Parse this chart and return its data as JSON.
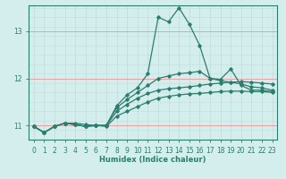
{
  "xlabel": "Humidex (Indice chaleur)",
  "ylabel": "",
  "bg_color": "#d4eeed",
  "grid_color_minor": "#c2dede",
  "grid_color_major": "#e8a0a0",
  "line_color": "#2d7d6e",
  "xlim": [
    -0.5,
    23.5
  ],
  "ylim": [
    10.7,
    13.55
  ],
  "yticks": [
    11,
    12,
    13
  ],
  "xticks": [
    0,
    1,
    2,
    3,
    4,
    5,
    6,
    7,
    8,
    9,
    10,
    11,
    12,
    13,
    14,
    15,
    16,
    17,
    18,
    19,
    20,
    21,
    22,
    23
  ],
  "series": [
    {
      "x": [
        0,
        1,
        2,
        3,
        4,
        5,
        6,
        7,
        8,
        9,
        10,
        11,
        12,
        13,
        14,
        15,
        16,
        17,
        18,
        19,
        20,
        21,
        22,
        23
      ],
      "y": [
        10.98,
        10.85,
        10.98,
        11.05,
        11.05,
        11.02,
        11.0,
        11.0,
        11.42,
        11.65,
        11.8,
        12.1,
        13.3,
        13.2,
        13.5,
        13.15,
        12.7,
        12.0,
        11.98,
        12.2,
        11.85,
        11.75,
        11.75,
        11.72
      ]
    },
    {
      "x": [
        0,
        1,
        2,
        3,
        4,
        5,
        6,
        7,
        8,
        9,
        10,
        11,
        12,
        13,
        14,
        15,
        16,
        17,
        18,
        19,
        20,
        21,
        22,
        23
      ],
      "y": [
        10.98,
        10.85,
        10.98,
        11.05,
        11.02,
        10.98,
        11.0,
        11.0,
        11.38,
        11.55,
        11.7,
        11.85,
        12.0,
        12.05,
        12.1,
        12.12,
        12.15,
        12.0,
        11.95,
        11.92,
        11.88,
        11.82,
        11.8,
        11.75
      ]
    },
    {
      "x": [
        0,
        1,
        2,
        3,
        4,
        5,
        6,
        7,
        8,
        9,
        10,
        11,
        12,
        13,
        14,
        15,
        16,
        17,
        18,
        19,
        20,
        21,
        22,
        23
      ],
      "y": [
        10.98,
        10.85,
        10.98,
        11.05,
        11.02,
        10.98,
        11.0,
        11.0,
        11.3,
        11.45,
        11.58,
        11.68,
        11.75,
        11.78,
        11.8,
        11.82,
        11.85,
        11.88,
        11.9,
        11.92,
        11.93,
        11.92,
        11.9,
        11.88
      ]
    },
    {
      "x": [
        0,
        1,
        2,
        3,
        4,
        5,
        6,
        7,
        8,
        9,
        10,
        11,
        12,
        13,
        14,
        15,
        16,
        17,
        18,
        19,
        20,
        21,
        22,
        23
      ],
      "y": [
        10.98,
        10.85,
        10.98,
        11.05,
        11.02,
        10.98,
        11.0,
        10.98,
        11.2,
        11.3,
        11.4,
        11.5,
        11.58,
        11.62,
        11.65,
        11.67,
        11.68,
        11.7,
        11.72,
        11.73,
        11.73,
        11.72,
        11.72,
        11.7
      ]
    }
  ]
}
